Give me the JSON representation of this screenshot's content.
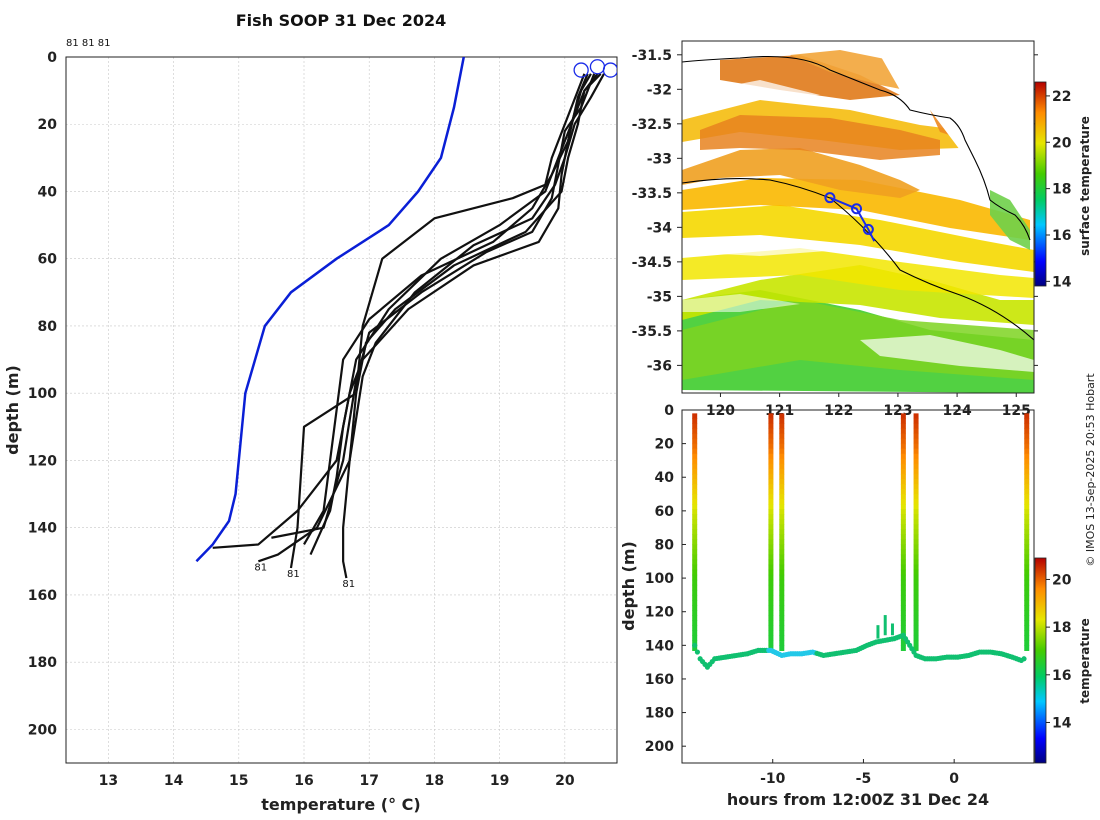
{
  "title": "Fish SOOP 31 Dec 2024",
  "credit": "© IMOS 13-Sep-2025 20:53 Hobart",
  "colors": {
    "climatology": "#0a1fd6",
    "profile": "#111111",
    "marker": "#1a2be8"
  },
  "chart_data": [
    {
      "id": "profiles",
      "type": "line",
      "xlabel": "temperature (° C)",
      "ylabel": "depth (m)",
      "xlim": [
        12.35,
        20.8
      ],
      "ylim": [
        0,
        210
      ],
      "y_reversed": true,
      "xticks": [
        13,
        14,
        15,
        16,
        17,
        18,
        19,
        20
      ],
      "yticks": [
        0,
        20,
        40,
        60,
        80,
        100,
        120,
        140,
        160,
        180,
        200
      ],
      "top_annotation": "81 81 81",
      "climatology": {
        "name": "climatology",
        "x": [
          18.45,
          18.3,
          18.1,
          17.75,
          17.3,
          16.5,
          15.8,
          15.4,
          15.25,
          15.1,
          15.05,
          15.0,
          14.95,
          14.85,
          14.6,
          14.35
        ],
        "y": [
          0,
          15,
          30,
          40,
          50,
          60,
          70,
          80,
          90,
          100,
          110,
          120,
          130,
          138,
          145,
          150
        ]
      },
      "profiles": [
        {
          "x": [
            20.3,
            20.2,
            20.0,
            19.8,
            19.7,
            19.2,
            18.0,
            17.2,
            16.9,
            16.8,
            16.7,
            16.6,
            16.6,
            16.65
          ],
          "y": [
            5,
            10,
            20,
            30,
            38,
            42,
            48,
            60,
            80,
            100,
            120,
            140,
            150,
            155
          ],
          "end_label": "81"
        },
        {
          "x": [
            20.35,
            20.2,
            20.05,
            19.8,
            19.5,
            18.9,
            17.8,
            17.0,
            16.6,
            16.5,
            16.4,
            16.3,
            16.0
          ],
          "y": [
            5,
            12,
            25,
            35,
            45,
            55,
            65,
            78,
            90,
            105,
            120,
            135,
            145
          ],
          "end_label": ""
        },
        {
          "x": [
            20.4,
            20.25,
            20.1,
            19.9,
            19.7,
            19.0,
            18.1,
            17.3,
            16.8,
            16.6,
            16.5,
            16.4,
            16.1
          ],
          "y": [
            5,
            10,
            20,
            30,
            40,
            50,
            60,
            75,
            90,
            110,
            125,
            135,
            148
          ],
          "end_label": ""
        },
        {
          "x": [
            20.55,
            20.3,
            20.1,
            19.95,
            19.9,
            19.6,
            18.6,
            17.6,
            16.9,
            16.7,
            16.5,
            15.9,
            15.3,
            14.6
          ],
          "y": [
            5,
            10,
            20,
            35,
            45,
            55,
            62,
            75,
            90,
            100,
            120,
            135,
            145,
            146
          ],
          "end_label": ""
        },
        {
          "x": [
            20.5,
            20.3,
            20.2,
            20.05,
            19.95,
            19.4,
            18.3,
            17.4,
            16.95,
            16.8,
            16.0,
            15.9,
            15.8
          ],
          "y": [
            5,
            10,
            20,
            30,
            40,
            52,
            62,
            75,
            85,
            100,
            110,
            140,
            152
          ],
          "end_label": "81"
        },
        {
          "x": [
            20.6,
            20.4,
            20.15,
            20.0,
            19.85,
            19.5,
            18.6,
            17.7,
            17.1,
            16.9,
            16.7,
            16.2,
            15.6,
            15.3
          ],
          "y": [
            5,
            12,
            20,
            30,
            38,
            48,
            56,
            70,
            85,
            95,
            120,
            140,
            148,
            150
          ],
          "end_label": "81"
        },
        {
          "x": [
            20.45,
            20.25,
            20.0,
            19.9,
            19.8,
            19.5,
            18.8,
            17.8,
            17.0,
            16.8,
            16.6,
            16.3,
            15.5
          ],
          "y": [
            5,
            15,
            22,
            32,
            42,
            52,
            58,
            70,
            82,
            96,
            120,
            140,
            143
          ],
          "end_label": ""
        }
      ],
      "markers_top": [
        {
          "x": 20.25,
          "y": 3
        },
        {
          "x": 20.5,
          "y": 2
        },
        {
          "x": 20.7,
          "y": 3
        }
      ]
    },
    {
      "id": "map",
      "type": "heatmap",
      "ylabel": "",
      "xlim": [
        119.35,
        125.3
      ],
      "ylim": [
        -36.4,
        -31.3
      ],
      "yticks": [
        -31.5,
        -32,
        -32.5,
        -33,
        -33.5,
        -34,
        -34.5,
        -35,
        -35.5,
        -36
      ],
      "xticks": [
        120,
        121,
        122,
        123,
        124,
        125
      ],
      "colorbar": {
        "label": "surface temperature",
        "ticks": [
          14,
          16,
          18,
          20,
          22
        ],
        "range": [
          13.8,
          22.6
        ]
      },
      "track": {
        "lon": [
          121.85,
          122.3,
          122.5,
          122.6
        ],
        "lat": [
          -33.57,
          -33.73,
          -34.03,
          -34.2
        ]
      }
    },
    {
      "id": "section",
      "type": "scatter",
      "xlabel": "hours from 12:00Z 31 Dec 24",
      "ylabel": "depth (m)",
      "xlim": [
        -15,
        4.4
      ],
      "ylim": [
        0,
        210
      ],
      "y_reversed": true,
      "xticks": [
        -10,
        -5,
        0
      ],
      "yticks": [
        0,
        20,
        40,
        60,
        80,
        100,
        120,
        140,
        160,
        180,
        200
      ],
      "colorbar": {
        "label": "temperature",
        "ticks": [
          14,
          16,
          18,
          20
        ],
        "range": [
          12.3,
          20.9
        ]
      },
      "casts_hours": [
        -14.3,
        -10.1,
        -9.5,
        -2.8,
        -2.1,
        4.0
      ],
      "bottom_depth": {
        "hours": [
          -14.3,
          -14.0,
          -13.6,
          -13.2,
          -12.6,
          -12.0,
          -11.4,
          -10.8,
          -10.1,
          -9.5,
          -9.0,
          -8.4,
          -7.8,
          -7.2,
          -6.6,
          -6.0,
          -5.4,
          -4.8,
          -4.3,
          -3.8,
          -3.3,
          -2.8,
          -2.1,
          -1.6,
          -1.0,
          -0.4,
          0.2,
          0.8,
          1.4,
          2.0,
          2.6,
          3.2,
          3.7,
          4.0
        ],
        "depth": [
          140,
          148,
          153,
          148,
          147,
          146,
          145,
          143,
          143,
          146,
          145,
          145,
          144,
          146,
          145,
          144,
          143,
          140,
          138,
          137,
          136,
          134,
          146,
          148,
          148,
          147,
          147,
          146,
          144,
          144,
          145,
          147,
          149,
          147
        ]
      }
    }
  ]
}
